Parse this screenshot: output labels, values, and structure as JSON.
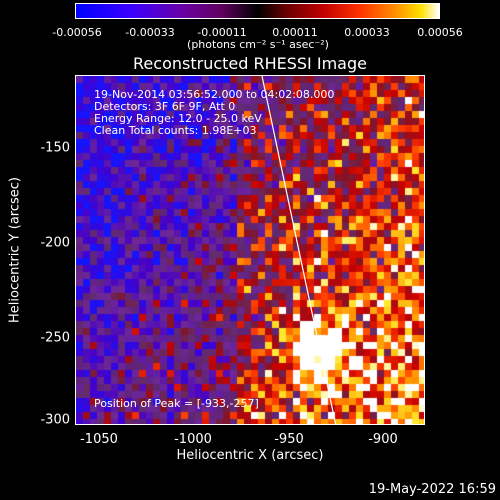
{
  "colorbar": {
    "ticks": [
      "-0.00056",
      "-0.00033",
      "-0.00011",
      "0.00011",
      "0.00033",
      "0.00056"
    ],
    "unit": "(photons cm⁻² s⁻¹ asec⁻²)"
  },
  "title": "Reconstructed RHESSI Image",
  "info": {
    "time": "19-Nov-2014 03:56:52.000 to 04:02:08.000",
    "detectors": "Detectors: 3F 6F 9F, Att 0",
    "energy": "Energy Range: 12.0 - 25.0 keV",
    "clean": "Clean     Total counts: 1.98E+03",
    "peak": "Position of Peak = [-933,-257]"
  },
  "axes": {
    "xlabel": "Heliocentric X (arcsec)",
    "ylabel": "Heliocentric Y (arcsec)",
    "xticks": [
      "-1050",
      "-1000",
      "-950",
      "-900"
    ],
    "yticks": [
      "-150",
      "-200",
      "-250",
      "-300"
    ],
    "xticks_values": [
      -1050,
      -1000,
      -950,
      -900
    ],
    "yticks_values": [
      -150,
      -200,
      -250,
      -300
    ],
    "xlim": [
      -1065,
      -873
    ],
    "ylim": [
      -302,
      -122
    ]
  },
  "timestamp": "19-May-2022 16:59"
}
